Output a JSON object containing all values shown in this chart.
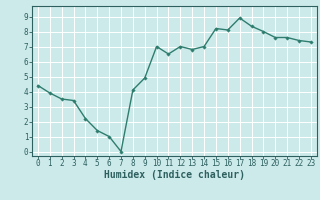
{
  "x": [
    0,
    1,
    2,
    3,
    4,
    5,
    6,
    7,
    8,
    9,
    10,
    11,
    12,
    13,
    14,
    15,
    16,
    17,
    18,
    19,
    20,
    21,
    22,
    23
  ],
  "y": [
    4.4,
    3.9,
    3.5,
    3.4,
    2.2,
    1.4,
    1.0,
    0.0,
    4.1,
    4.9,
    7.0,
    6.5,
    7.0,
    6.8,
    7.0,
    8.2,
    8.1,
    8.9,
    8.35,
    8.0,
    7.6,
    7.6,
    7.4,
    7.3
  ],
  "line_color": "#2e7d6e",
  "marker": "D",
  "marker_size": 1.8,
  "bg_color": "#cdeaea",
  "grid_color": "#ffffff",
  "xlabel": "Humidex (Indice chaleur)",
  "xlim": [
    -0.5,
    23.5
  ],
  "ylim": [
    -0.3,
    9.7
  ],
  "yticks": [
    0,
    1,
    2,
    3,
    4,
    5,
    6,
    7,
    8,
    9
  ],
  "xticks": [
    0,
    1,
    2,
    3,
    4,
    5,
    6,
    7,
    8,
    9,
    10,
    11,
    12,
    13,
    14,
    15,
    16,
    17,
    18,
    19,
    20,
    21,
    22,
    23
  ],
  "tick_color": "#2e6060",
  "label_fontsize": 7,
  "tick_fontsize": 5.5,
  "linewidth": 1.0,
  "axis_color": "#2e6060",
  "border_color": "#2e6060"
}
